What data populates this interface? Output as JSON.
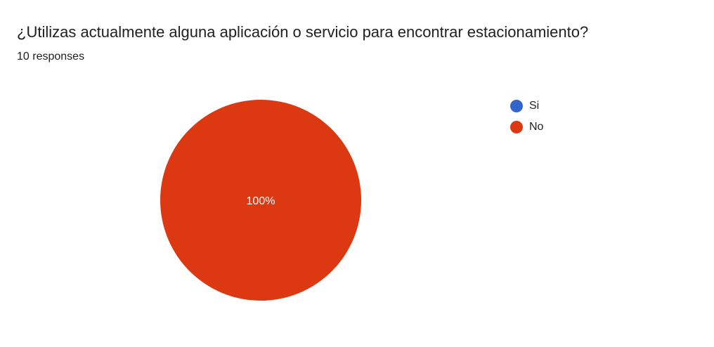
{
  "question": {
    "title": "¿Utilizas actualmente alguna aplicación o servicio para encontrar estacionamiento?",
    "responses": "10 responses"
  },
  "chart_data": {
    "type": "pie",
    "categories": [
      "Si",
      "No"
    ],
    "values": [
      0,
      10
    ],
    "data_labels": [
      "",
      "100%"
    ],
    "colors": [
      "#3366cc",
      "#dc3912"
    ],
    "legend_position": "right"
  }
}
